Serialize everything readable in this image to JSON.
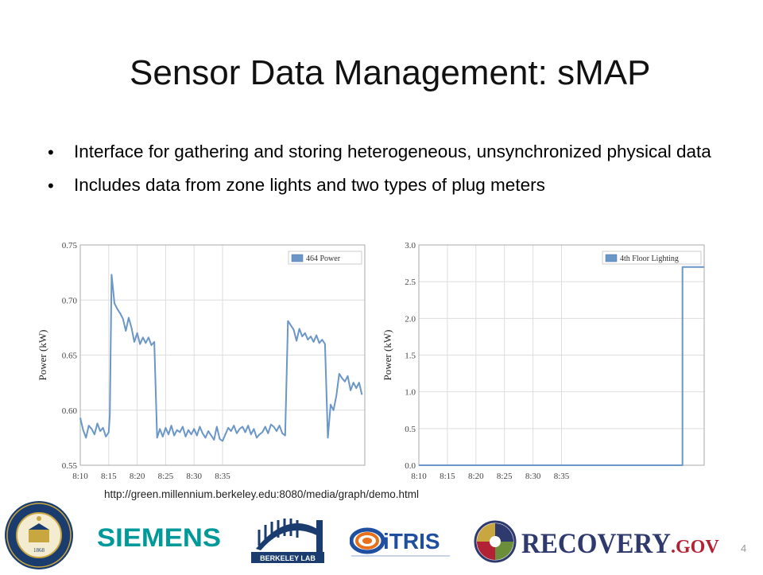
{
  "slide": {
    "title": "Sensor Data Management: sMAP",
    "bullets": [
      "Interface for gathering and storing heterogeneous, unsynchronized physical data",
      "Includes data from zone lights and two types of plug meters"
    ],
    "source_url": "http://green.millennium.berkeley.edu:8080/media/graph/demo.html",
    "page_number": "4"
  },
  "chart_data": [
    {
      "type": "line",
      "ylabel": "Power (kW)",
      "xlabel": "",
      "ylim": [
        0.55,
        0.75
      ],
      "yticks": [
        "0.55",
        "0.60",
        "0.65",
        "0.70",
        "0.75"
      ],
      "xlim": [
        490,
        540
      ],
      "xticks": [
        "8:10",
        "8:15",
        "8:20",
        "8:25",
        "8:30",
        "8:35"
      ],
      "grid": true,
      "legend": "top-right",
      "color": "#6a96c8",
      "series": [
        {
          "name": "464 Power",
          "x": [
            490.0,
            490.5,
            491.0,
            491.5,
            492.0,
            492.5,
            493.0,
            493.5,
            494.0,
            494.5,
            495.0,
            495.2,
            495.5,
            496.0,
            496.5,
            497.0,
            497.5,
            498.0,
            498.5,
            499.0,
            499.5,
            500.0,
            500.5,
            501.0,
            501.5,
            502.0,
            502.5,
            503.0,
            503.5,
            504.0,
            504.5,
            505.0,
            505.5,
            506.0,
            506.5,
            507.0,
            507.5,
            508.0,
            508.5,
            509.0,
            509.5,
            510.0,
            510.5,
            511.0,
            511.5,
            512.0,
            512.5,
            513.0,
            513.5,
            514.0,
            514.5,
            515.0,
            515.5,
            516.0,
            516.5,
            517.0,
            517.5,
            518.0,
            518.5,
            519.0,
            519.5,
            520.0,
            520.5,
            521.0,
            521.5,
            522.0,
            522.5,
            523.0,
            523.5,
            524.0,
            524.5,
            525.0,
            525.5,
            526.0,
            526.5,
            527.0,
            527.5,
            528.0,
            528.5,
            529.0,
            529.5,
            530.0,
            530.5,
            531.0,
            531.5,
            532.0,
            532.5,
            533.0,
            533.5,
            534.0,
            534.5,
            535.0,
            535.5,
            536.0,
            536.5,
            537.0,
            537.5,
            538.0,
            538.5,
            539.0,
            539.5
          ],
          "y": [
            0.593,
            0.582,
            0.575,
            0.586,
            0.583,
            0.578,
            0.588,
            0.581,
            0.584,
            0.576,
            0.58,
            0.596,
            0.723,
            0.697,
            0.692,
            0.688,
            0.683,
            0.672,
            0.684,
            0.675,
            0.662,
            0.67,
            0.66,
            0.666,
            0.661,
            0.666,
            0.659,
            0.662,
            0.575,
            0.583,
            0.576,
            0.584,
            0.578,
            0.586,
            0.577,
            0.582,
            0.58,
            0.585,
            0.576,
            0.582,
            0.578,
            0.583,
            0.577,
            0.585,
            0.579,
            0.575,
            0.581,
            0.577,
            0.573,
            0.585,
            0.574,
            0.572,
            0.578,
            0.584,
            0.581,
            0.586,
            0.579,
            0.583,
            0.585,
            0.58,
            0.586,
            0.578,
            0.583,
            0.575,
            0.578,
            0.58,
            0.585,
            0.579,
            0.587,
            0.585,
            0.581,
            0.586,
            0.579,
            0.577,
            0.681,
            0.677,
            0.673,
            0.663,
            0.674,
            0.667,
            0.67,
            0.664,
            0.667,
            0.662,
            0.668,
            0.661,
            0.664,
            0.66,
            0.575,
            0.605,
            0.6,
            0.613,
            0.633,
            0.629,
            0.626,
            0.631,
            0.618,
            0.625,
            0.62,
            0.625,
            0.614
          ]
        }
      ]
    },
    {
      "type": "line",
      "ylabel": "Power (kW)",
      "xlabel": "",
      "ylim": [
        0,
        3
      ],
      "yticks": [
        "0.0",
        "0.5",
        "1.0",
        "1.5",
        "2.0",
        "2.5",
        "3.0"
      ],
      "xlim": [
        490,
        540
      ],
      "xticks": [
        "8:10",
        "8:15",
        "8:20",
        "8:25",
        "8:30",
        "8:35"
      ],
      "grid": true,
      "legend": "top-right",
      "color": "#6a96c8",
      "series": [
        {
          "name": "4th Floor Lighting",
          "x": [
            490,
            536.2,
            536.2,
            540
          ],
          "y": [
            0,
            0,
            2.7,
            2.7
          ]
        }
      ]
    }
  ],
  "logos": [
    {
      "name": "uc-seal",
      "text": "UNIVERSITY OF CALIFORNIA 1868",
      "color": "#1a3c6e",
      "accent": "#c8a640"
    },
    {
      "name": "siemens",
      "text": "SIEMENS",
      "color": "#009999"
    },
    {
      "name": "berkeley-lab",
      "text": "BERKELEY LAB",
      "color": "#1a3c6e"
    },
    {
      "name": "citris",
      "text": "iTRIS",
      "color": "#1e4fa0",
      "accent": "#e8701a"
    },
    {
      "name": "recovery-gov",
      "text": "RECOVERY",
      "suffix": ".GOV",
      "color": "#2e3a6e",
      "accent": "#b22234"
    }
  ]
}
